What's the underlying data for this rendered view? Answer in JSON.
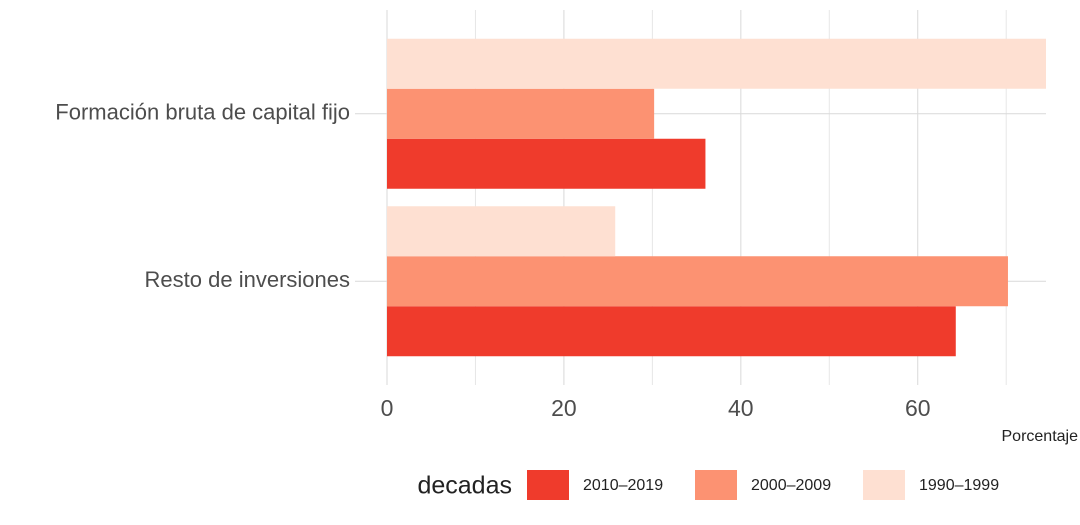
{
  "chart_data": {
    "type": "barh",
    "categories": [
      "Formación bruta de capital fijo",
      "Resto de inversiones"
    ],
    "series": [
      {
        "name": "2010–2019",
        "color": "#ef3b2c",
        "values": [
          36,
          64.3
        ]
      },
      {
        "name": "2000–2009",
        "color": "#fc9272",
        "values": [
          30.2,
          70.2
        ]
      },
      {
        "name": "1990–1999",
        "color": "#fee0d2",
        "values": [
          74.5,
          25.8
        ]
      }
    ],
    "xlim": [
      0,
      74.5
    ],
    "xticks": [
      0,
      20,
      40,
      60
    ],
    "minor_xticks": [
      10,
      30,
      50,
      70
    ],
    "xlabel": "Porcentaje",
    "legend_title": "decadas",
    "legend": "bottom",
    "grid": true
  }
}
